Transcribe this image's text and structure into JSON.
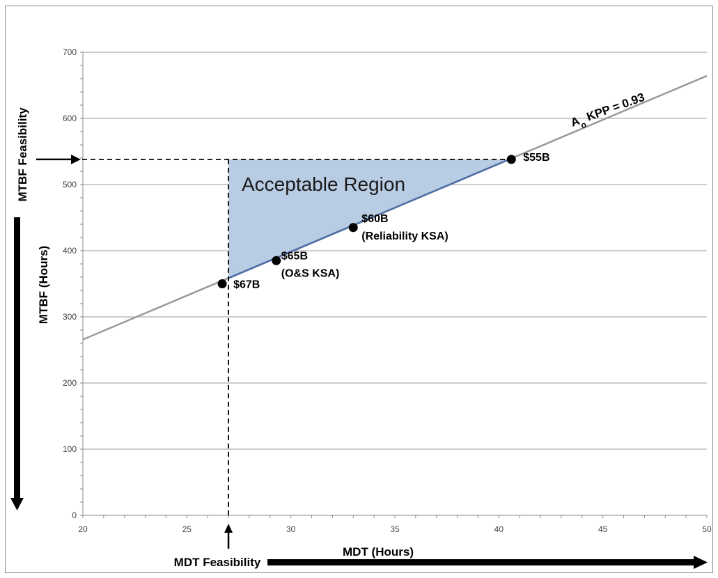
{
  "chart_data": {
    "type": "line",
    "xlabel": "MDT (Hours)",
    "ylabel": "MTBF (Hours)",
    "xlim": [
      20,
      50
    ],
    "ylim": [
      0,
      700
    ],
    "x_ticks": [
      20,
      25,
      30,
      35,
      40,
      45,
      50
    ],
    "y_ticks": [
      0,
      100,
      200,
      300,
      400,
      500,
      600,
      700
    ],
    "grid": "horizontal",
    "series": [
      {
        "name": "Ao KPP = 0.93",
        "label_parts": {
          "a": "A",
          "sub": "o",
          "rest": " KPP = 0.93"
        },
        "x": [
          20,
          50
        ],
        "y": [
          265.7,
          664.3
        ],
        "color": "#999999"
      }
    ],
    "points": [
      {
        "label": "$67B",
        "x": 26.7,
        "y": 350
      },
      {
        "label": "$65B",
        "sublabel": "(O&S KSA)",
        "x": 29.3,
        "y": 385
      },
      {
        "label": "$60B",
        "sublabel": "(Reliability KSA)",
        "x": 33.0,
        "y": 435
      },
      {
        "label": "$55B",
        "x": 40.6,
        "y": 538
      }
    ],
    "region": {
      "label": "Acceptable Region",
      "x": [
        27,
        27,
        40.5
      ],
      "y": [
        538,
        358.5,
        538
      ],
      "fill": "#b8cce4",
      "edge": "#4f6fa8"
    },
    "mdt_feasibility": {
      "label": "MDT Feasibility",
      "x": 27
    },
    "mtbf_feasibility": {
      "label": "MTBF Feasibility",
      "y": 538
    }
  }
}
